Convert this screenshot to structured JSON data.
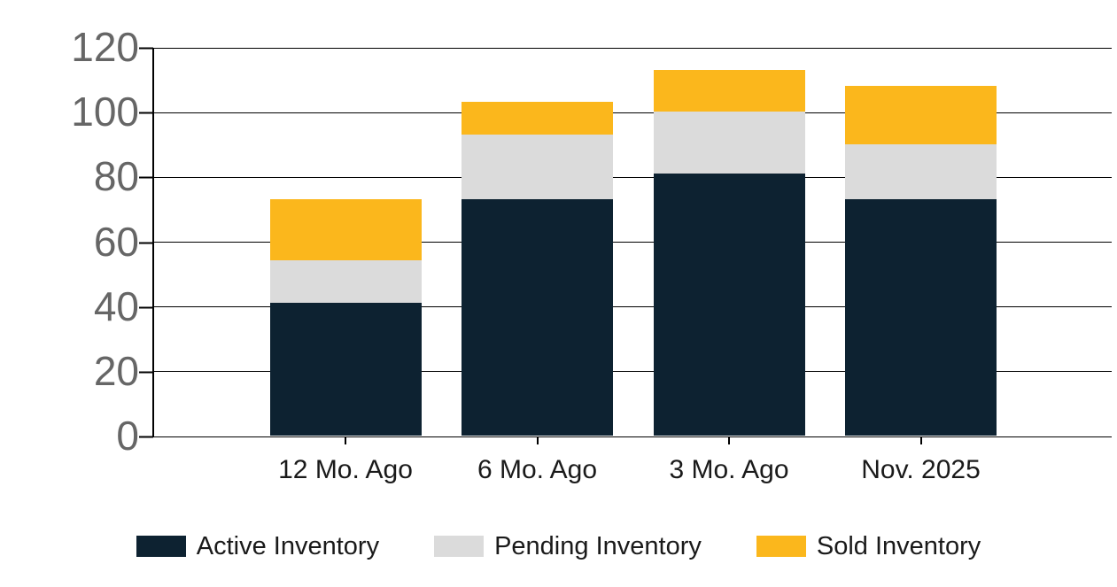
{
  "chart_data": {
    "type": "bar",
    "stacked": true,
    "title": "",
    "xlabel": "",
    "ylabel": "",
    "categories": [
      "12 Mo. Ago",
      "6 Mo. Ago",
      "3 Mo. Ago",
      "Nov. 2025"
    ],
    "series": [
      {
        "name": "Active Inventory",
        "color": "#0d2231",
        "values": [
          41,
          73,
          81,
          73
        ]
      },
      {
        "name": "Pending Inventory",
        "color": "#dbdbdb",
        "values": [
          13,
          20,
          19,
          17
        ]
      },
      {
        "name": "Sold Inventory",
        "color": "#fbb71c",
        "values": [
          19,
          10,
          13,
          18
        ]
      }
    ],
    "stack_totals": [
      73,
      103,
      113,
      108
    ],
    "ylim": [
      0,
      120
    ],
    "yticks": [
      0,
      20,
      40,
      60,
      80,
      100,
      120
    ],
    "grid": true,
    "legend_position": "bottom"
  },
  "colors": {
    "background": "#ffffff",
    "axis": "#000000",
    "gridline": "#000000",
    "y_tick_label": "#666666",
    "x_tick_label": "#1a1a1a",
    "legend_label": "#1a1a1a"
  }
}
